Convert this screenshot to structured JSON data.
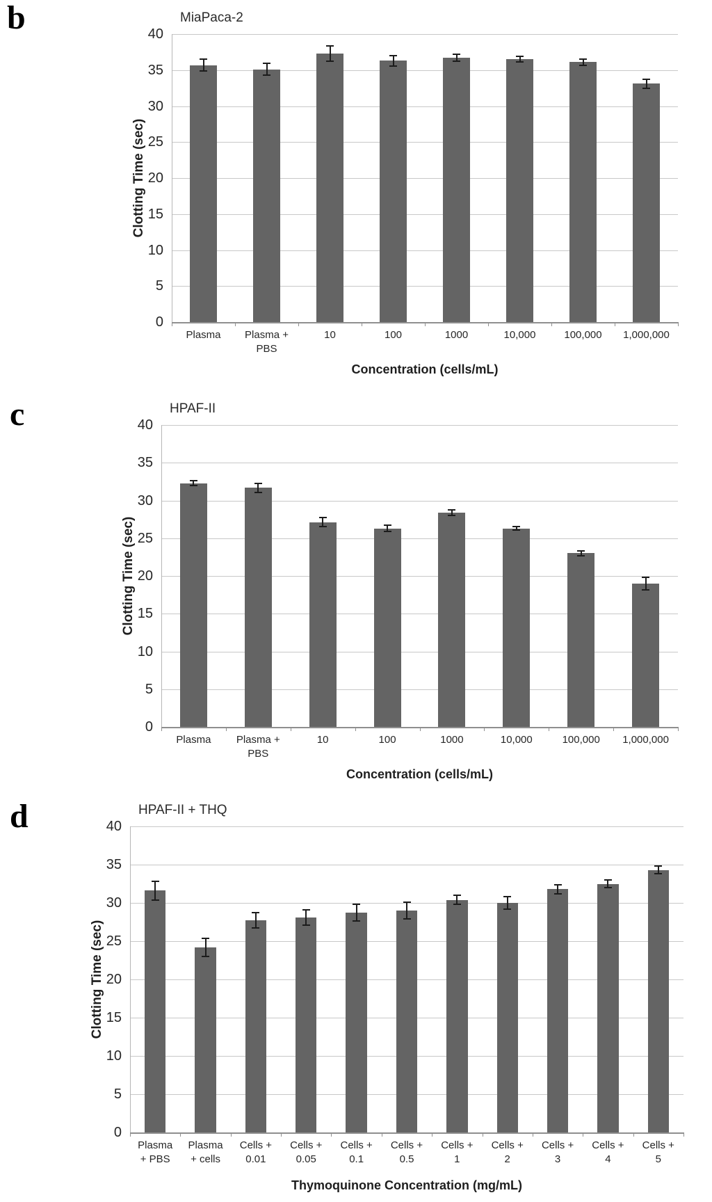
{
  "panels": [
    {
      "letter": "b"
    },
    {
      "letter": "c"
    },
    {
      "letter": "d"
    }
  ],
  "colors": {
    "bar": "#646464",
    "error_bar": "#1c1c1c",
    "gridline": "#c8c8c8",
    "axis": "#8f8f8f"
  },
  "chart_data": [
    {
      "type": "bar",
      "panel": "b",
      "title": "MiaPaca-2",
      "xlabel": "Concentration (cells/mL)",
      "ylabel": "Clotting Time (sec)",
      "ylim": [
        0,
        40
      ],
      "ytick_step": 5,
      "grid": true,
      "legend": "none",
      "categories": [
        "Plasma",
        "Plasma +\nPBS",
        "10",
        "100",
        "1000",
        "10,000",
        "100,000",
        "1,000,000"
      ],
      "values": [
        35.7,
        35.1,
        37.3,
        36.3,
        36.7,
        36.5,
        36.1,
        33.1
      ],
      "errors": [
        0.8,
        0.8,
        1.1,
        0.7,
        0.5,
        0.4,
        0.4,
        0.6
      ]
    },
    {
      "type": "bar",
      "panel": "c",
      "title": "HPAF-II",
      "xlabel": "Concentration (cells/mL)",
      "ylabel": "Clotting Time (sec)",
      "ylim": [
        0,
        40
      ],
      "ytick_step": 5,
      "grid": true,
      "legend": "none",
      "categories": [
        "Plasma",
        "Plasma +\nPBS",
        "10",
        "100",
        "1000",
        "10,000",
        "100,000",
        "1,000,000"
      ],
      "values": [
        32.3,
        31.7,
        27.1,
        26.3,
        28.4,
        26.3,
        23.0,
        19.0
      ],
      "errors": [
        0.3,
        0.6,
        0.6,
        0.4,
        0.4,
        0.2,
        0.3,
        0.8
      ]
    },
    {
      "type": "bar",
      "panel": "d",
      "title": "HPAF-II + THQ",
      "xlabel": "Thymoquinone Concentration (mg/mL)",
      "ylabel": "Clotting Time (sec)",
      "ylim": [
        0,
        40
      ],
      "ytick_step": 5,
      "grid": true,
      "legend": "none",
      "categories": [
        "Plasma\n+ PBS",
        "Plasma\n+ cells",
        "Cells +\n0.01",
        "Cells +\n0.05",
        "Cells +\n0.1",
        "Cells +\n0.5",
        "Cells +\n1",
        "Cells +\n2",
        "Cells +\n3",
        "Cells +\n4",
        "Cells +\n5"
      ],
      "values": [
        31.6,
        24.2,
        27.7,
        28.1,
        28.7,
        29.0,
        30.4,
        30.0,
        31.8,
        32.5,
        34.3
      ],
      "errors": [
        1.2,
        1.2,
        1.0,
        1.0,
        1.1,
        1.1,
        0.6,
        0.8,
        0.6,
        0.5,
        0.5
      ]
    }
  ]
}
